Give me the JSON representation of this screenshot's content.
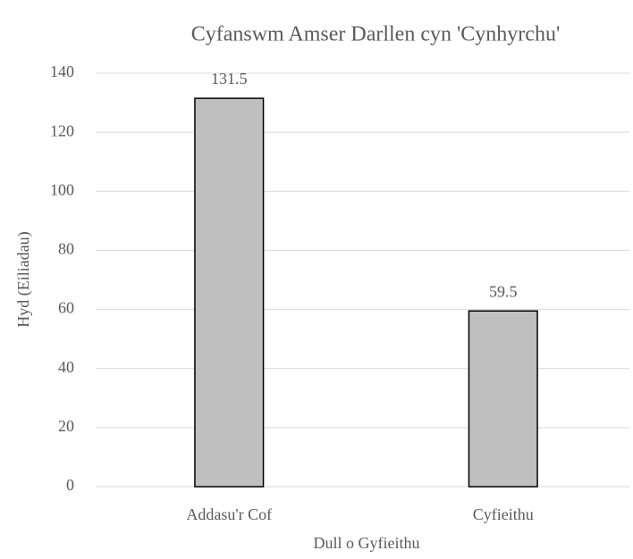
{
  "chart_data": {
    "type": "bar",
    "title": "Cyfanswm Amser Darllen cyn 'Cynhyrchu'",
    "x_label": "Dull o Gyfieithu",
    "y_label": "Hyd (Eiliadau)",
    "categories": [
      "Addasu'r Cof",
      "Cyfieithu"
    ],
    "values": [
      131.5,
      59.5
    ],
    "color": "#bfbfbf",
    "edge_color": "#000000",
    "ylim": [
      0,
      140
    ],
    "yticks": [
      0,
      20,
      40,
      60,
      80,
      100,
      120,
      140
    ],
    "grid": true,
    "data_labels": true
  }
}
